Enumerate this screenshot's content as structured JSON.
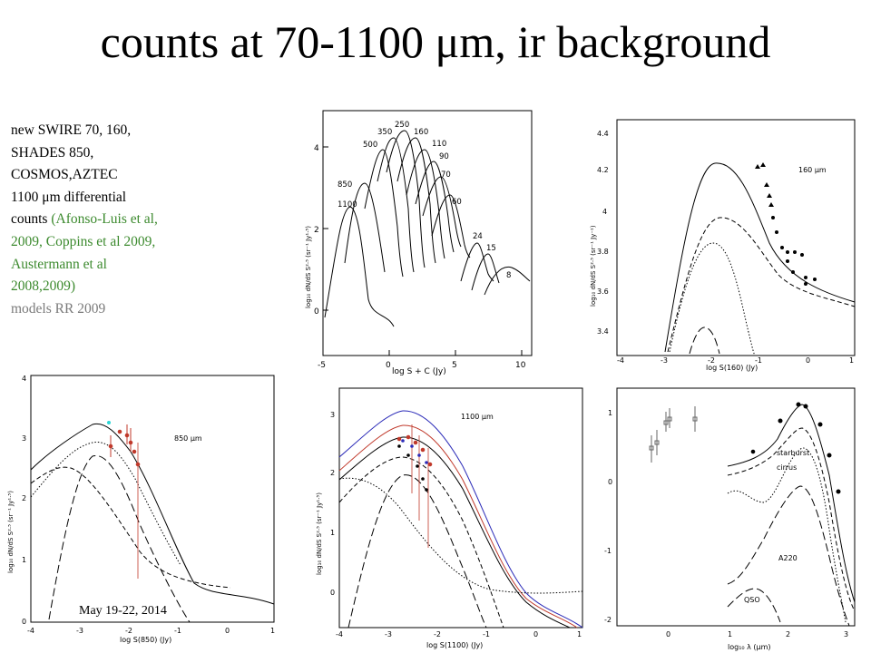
{
  "slide": {
    "title": "counts at 70-1100 μm, ir background",
    "footer_date": "May 19-22, 2014"
  },
  "caption": {
    "line1": "new SWIRE 70, 160,",
    "line2": "SHADES 850,",
    "line3": "COSMOS,AZTEC",
    "line4": "1100 μm differential",
    "line5_a": "counts ",
    "line5_b": "(Afonso-Luis et al,",
    "line6": "2009, Coppins et al 2009,",
    "line7": "Austermann et al",
    "line8": "2008,2009)",
    "line9": " models RR 2009"
  },
  "plots": {
    "p1": {
      "xlabel": "log S + C (Jy)",
      "ylabel": "log₁₀ dN/dS S²·⁵ (sr⁻¹ Jy¹·⁵)",
      "xticks": [
        "-5",
        "0",
        "5",
        "10"
      ],
      "yticks": [
        "0",
        "2",
        "4"
      ],
      "curve_labels": [
        "1100",
        "850",
        "500",
        "350",
        "250",
        "160",
        "110",
        "90",
        "70",
        "60",
        "24",
        "15",
        "8"
      ]
    },
    "p2": {
      "xlabel": "log S(160) (Jy)",
      "ylabel": "log₁₀ dN/dS S²·⁵ (sr⁻¹ Jy⁻¹)",
      "xticks": [
        "-4",
        "-3",
        "-2",
        "-1",
        "0",
        "1"
      ],
      "yticks": [
        "3.4",
        "3.6",
        "3.8",
        "4",
        "4.2",
        "4.4"
      ],
      "label": "160 μm"
    },
    "p3": {
      "xlabel": "log S(850) (Jy)",
      "ylabel": "log₁₀ dN/dS S²·⁵ (sr⁻¹ Jy¹·⁵)",
      "xticks": [
        "-4",
        "-3",
        "-2",
        "-1",
        "0",
        "1"
      ],
      "yticks": [
        "0",
        "1",
        "2",
        "3",
        "4"
      ],
      "label": "850 μm"
    },
    "p4": {
      "xlabel": "log S(1100) (Jy)",
      "ylabel": "log₁₀ dN/dS S²·⁵ (sr⁻¹ Jy¹·⁵)",
      "xticks": [
        "-4",
        "-3",
        "-2",
        "-1",
        "0",
        "1"
      ],
      "yticks": [
        "0",
        "1",
        "2",
        "3"
      ],
      "label": "1100 μm"
    },
    "p5": {
      "xlabel": "log₁₀ λ (μm)",
      "xticks": [
        "0",
        "1",
        "2",
        "3"
      ],
      "yticks": [
        "-2",
        "-1",
        "0",
        "1"
      ],
      "labels": [
        "starburst",
        "cirrus",
        "A220",
        "QSO"
      ]
    }
  }
}
